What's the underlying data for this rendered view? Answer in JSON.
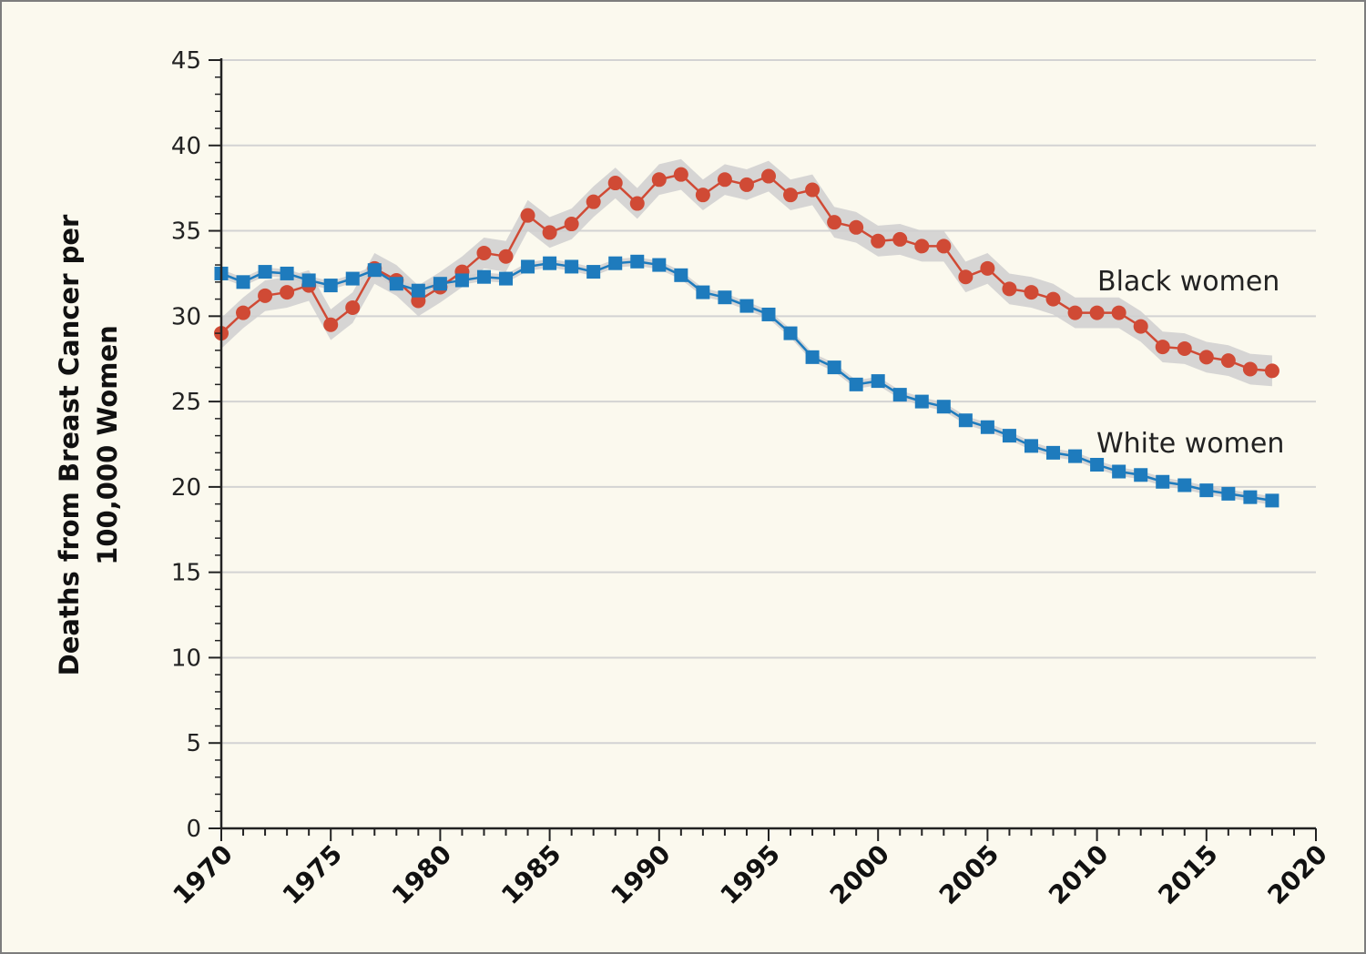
{
  "chart_data": {
    "type": "line",
    "title": "",
    "xlabel": "",
    "ylabel": "Deaths from Breast Cancer per 100,000 Women",
    "ylabel_lines": [
      "Deaths from Breast Cancer per",
      "100,000 Women"
    ],
    "xlim": [
      1970,
      2020
    ],
    "ylim": [
      0,
      45
    ],
    "x_ticks": [
      1970,
      1975,
      1980,
      1985,
      1990,
      1995,
      2000,
      2005,
      2010,
      2015,
      2020
    ],
    "y_ticks": [
      0,
      5,
      10,
      15,
      20,
      25,
      30,
      35,
      40,
      45
    ],
    "grid": "horizontal",
    "x": [
      1970,
      1971,
      1972,
      1973,
      1974,
      1975,
      1976,
      1977,
      1978,
      1979,
      1980,
      1981,
      1982,
      1983,
      1984,
      1985,
      1986,
      1987,
      1988,
      1989,
      1990,
      1991,
      1992,
      1993,
      1994,
      1995,
      1996,
      1997,
      1998,
      1999,
      2000,
      2001,
      2002,
      2003,
      2004,
      2005,
      2006,
      2007,
      2008,
      2009,
      2010,
      2011,
      2012,
      2013,
      2014,
      2015,
      2016,
      2017,
      2018
    ],
    "series": [
      {
        "name": "Black women",
        "color": "#d04a35",
        "marker": "circle",
        "band_halfwidth": 0.9,
        "values": [
          29.0,
          30.2,
          31.2,
          31.4,
          31.8,
          29.5,
          30.5,
          32.8,
          32.1,
          30.9,
          31.7,
          32.6,
          33.7,
          33.5,
          35.9,
          34.9,
          35.4,
          36.7,
          37.8,
          36.6,
          38.0,
          38.3,
          37.1,
          38.0,
          37.7,
          38.2,
          37.1,
          37.4,
          35.5,
          35.2,
          34.4,
          34.5,
          34.1,
          34.1,
          32.3,
          32.8,
          31.6,
          31.4,
          31.0,
          30.2,
          30.2,
          30.2,
          29.4,
          28.2,
          28.1,
          27.6,
          27.4,
          26.9,
          26.8
        ]
      },
      {
        "name": "White women",
        "color": "#1e7bbd",
        "marker": "square",
        "band_halfwidth": 0.25,
        "values": [
          32.5,
          32.0,
          32.6,
          32.5,
          32.1,
          31.8,
          32.2,
          32.7,
          31.9,
          31.5,
          31.9,
          32.1,
          32.3,
          32.2,
          32.9,
          33.1,
          32.9,
          32.6,
          33.1,
          33.2,
          33.0,
          32.4,
          31.4,
          31.1,
          30.6,
          30.1,
          29.0,
          27.6,
          27.0,
          26.0,
          26.2,
          25.4,
          25.0,
          24.7,
          23.9,
          23.5,
          23.0,
          22.4,
          22.0,
          21.8,
          21.3,
          20.9,
          20.7,
          20.3,
          20.1,
          19.8,
          19.6,
          19.4,
          19.2
        ]
      }
    ]
  }
}
